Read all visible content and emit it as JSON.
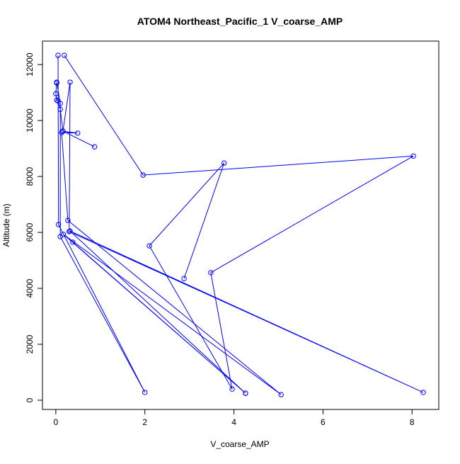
{
  "chart_data": {
    "type": "line",
    "title": "ATOM4 Northeast_Pacific_1 V_coarse_AMP",
    "xlabel": "V_coarse_AMP",
    "ylabel": "Altitude (m)",
    "xlim": [
      -0.3,
      8.6
    ],
    "ylim": [
      -330,
      12840
    ],
    "xticks": [
      0,
      2,
      4,
      6,
      8
    ],
    "yticks": [
      0,
      2000,
      4000,
      6000,
      8000,
      10000,
      12000
    ],
    "grid": false,
    "markers": "open-circle",
    "color": "#0000ff",
    "points": [
      [
        2.88,
        4350
      ],
      [
        3.78,
        8480
      ],
      [
        2.1,
        5520
      ],
      [
        3.96,
        400
      ],
      [
        3.48,
        4560
      ],
      [
        8.03,
        8730
      ],
      [
        1.96,
        8050
      ],
      [
        0.19,
        12330
      ],
      null,
      [
        0.05,
        12330
      ],
      [
        0.06,
        6280
      ],
      [
        2.0,
        280
      ],
      [
        0.1,
        5850
      ],
      [
        0.1,
        10610
      ],
      [
        0.02,
        11370
      ],
      [
        0.02,
        11340
      ],
      [
        0.0,
        10960
      ],
      [
        0.02,
        10730
      ],
      [
        0.05,
        10700
      ],
      [
        0.1,
        10400
      ],
      [
        0.16,
        9620
      ],
      [
        0.32,
        11370
      ],
      [
        0.3,
        6030
      ],
      [
        8.25,
        280
      ],
      [
        0.32,
        6050
      ],
      [
        4.26,
        250
      ],
      [
        0.38,
        5650
      ],
      [
        4.26,
        250
      ],
      [
        0.17,
        5930
      ],
      [
        5.06,
        200
      ],
      [
        0.27,
        6430
      ],
      [
        0.13,
        9570
      ],
      [
        0.49,
        9550
      ],
      [
        0.16,
        9620
      ],
      [
        0.87,
        9060
      ]
    ]
  }
}
